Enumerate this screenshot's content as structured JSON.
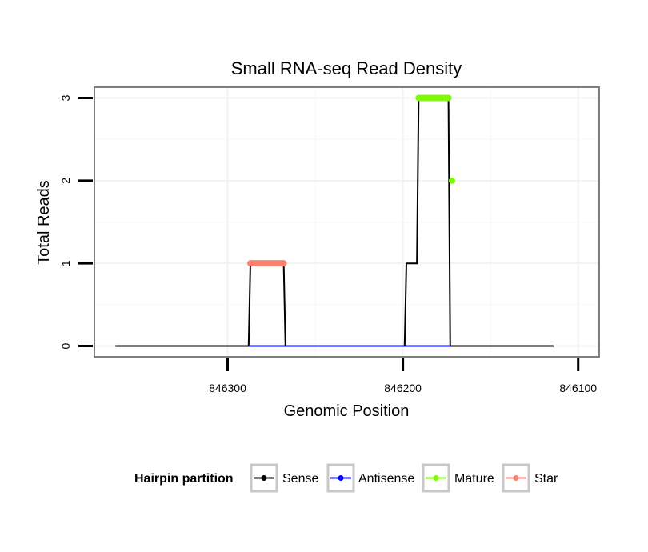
{
  "chart_data": {
    "type": "line",
    "title": "Small RNA-seq Read Density",
    "xlabel": "Genomic Position",
    "ylabel": "Total Reads",
    "x_reversed": true,
    "xlim": [
      846376,
      846088
    ],
    "ylim": [
      -0.13,
      3.13
    ],
    "x_ticks": [
      846300,
      846200,
      846100
    ],
    "x_tick_labels": [
      "846300",
      "846200",
      "846100"
    ],
    "y_ticks": [
      0,
      1,
      2,
      3
    ],
    "y_tick_labels": [
      "0",
      "1",
      "2",
      "3"
    ],
    "grid": true,
    "legend": {
      "position": "bottom",
      "title": "Hairpin partition",
      "entries": [
        {
          "name": "Sense",
          "color": "#000000"
        },
        {
          "name": "Antisense",
          "color": "#0000ff"
        },
        {
          "name": "Mature",
          "color": "#7cfc00"
        },
        {
          "name": "Star",
          "color": "#fa8072"
        }
      ]
    },
    "series": [
      {
        "name": "Sense",
        "color": "#000000",
        "points": [
          [
            846364,
            0
          ],
          [
            846288,
            0
          ],
          [
            846287,
            1
          ],
          [
            846268,
            1
          ],
          [
            846267,
            0
          ],
          [
            846199,
            0
          ],
          [
            846198,
            1
          ],
          [
            846192,
            1
          ],
          [
            846191,
            3
          ],
          [
            846174,
            3
          ],
          [
            846173,
            0
          ],
          [
            846114,
            0
          ]
        ]
      },
      {
        "name": "Antisense",
        "color": "#0000ff",
        "points": [
          [
            846288,
            0
          ],
          [
            846267,
            0
          ],
          [
            846199,
            0
          ],
          [
            846173,
            0
          ]
        ]
      },
      {
        "name": "Mature",
        "color": "#7cfc00",
        "points": [
          [
            846191,
            3
          ],
          [
            846190,
            3
          ],
          [
            846189,
            3
          ],
          [
            846188,
            3
          ],
          [
            846187,
            3
          ],
          [
            846186,
            3
          ],
          [
            846185,
            3
          ],
          [
            846184,
            3
          ],
          [
            846183,
            3
          ],
          [
            846182,
            3
          ],
          [
            846181,
            3
          ],
          [
            846180,
            3
          ],
          [
            846179,
            3
          ],
          [
            846178,
            3
          ],
          [
            846177,
            3
          ],
          [
            846176,
            3
          ],
          [
            846175,
            3
          ],
          [
            846174,
            3
          ],
          [
            846172,
            2
          ]
        ]
      },
      {
        "name": "Star",
        "color": "#fa8072",
        "points": [
          [
            846287,
            1
          ],
          [
            846286,
            1
          ],
          [
            846285,
            1
          ],
          [
            846284,
            1
          ],
          [
            846283,
            1
          ],
          [
            846282,
            1
          ],
          [
            846281,
            1
          ],
          [
            846280,
            1
          ],
          [
            846279,
            1
          ],
          [
            846278,
            1
          ],
          [
            846277,
            1
          ],
          [
            846276,
            1
          ],
          [
            846275,
            1
          ],
          [
            846274,
            1
          ],
          [
            846273,
            1
          ],
          [
            846272,
            1
          ],
          [
            846271,
            1
          ],
          [
            846270,
            1
          ],
          [
            846269,
            1
          ],
          [
            846268,
            1
          ]
        ]
      }
    ]
  }
}
